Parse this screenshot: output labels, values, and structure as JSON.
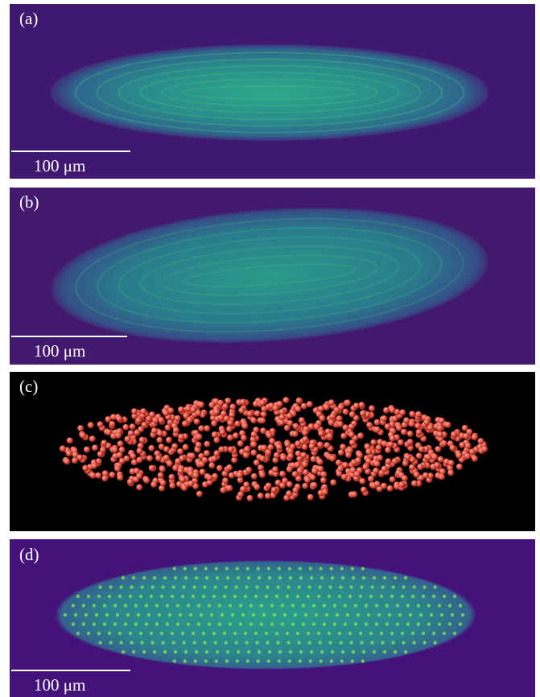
{
  "panels": [
    {
      "label": "(a)",
      "scale_bar": "100 μm"
    },
    {
      "label": "(b)",
      "scale_bar": "100 μm"
    },
    {
      "label": "(c)"
    },
    {
      "label": "(d)",
      "scale_bar": "100 μm"
    }
  ]
}
